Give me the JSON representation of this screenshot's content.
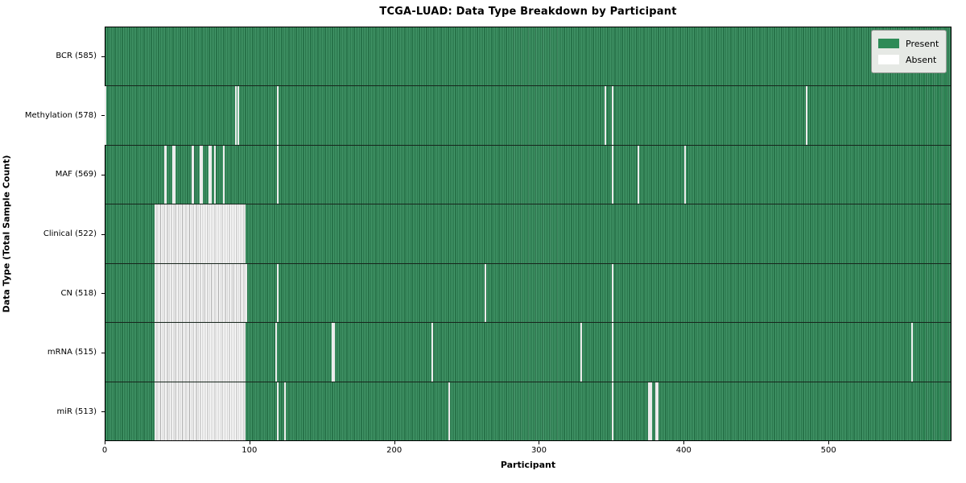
{
  "figure": {
    "background": "#ffffff",
    "plot_border_color": "#000000",
    "row_separator_color": "#17251c"
  },
  "chart_data": {
    "type": "heatmap",
    "title": "TCGA-LUAD: Data Type Breakdown by Participant",
    "xlabel": "Participant",
    "ylabel": "Data Type (Total Sample Count)",
    "n_participants": 585,
    "x_ticks": [
      0,
      100,
      200,
      300,
      400,
      500
    ],
    "x_range": [
      0,
      585
    ],
    "grid": false,
    "legend_position": "upper right",
    "legend": [
      {
        "label": "Present",
        "color": "#2e8b57"
      },
      {
        "label": "Absent",
        "color": "#ffffff"
      }
    ],
    "rows": [
      {
        "name": "BCR",
        "label": "BCR (585)",
        "present_count": 585,
        "absent": [],
        "absent_ranges": []
      },
      {
        "name": "Methylation",
        "label": "Methylation (578)",
        "present_count": 578,
        "absent": [
          0,
          90,
          92,
          119,
          346,
          351,
          485
        ],
        "absent_ranges": []
      },
      {
        "name": "MAF",
        "label": "MAF (569)",
        "present_count": 569,
        "absent": [
          41,
          42,
          47,
          48,
          60,
          61,
          66,
          67,
          72,
          73,
          76,
          82,
          119,
          351,
          369,
          401
        ],
        "absent_ranges": []
      },
      {
        "name": "Clinical",
        "label": "Clinical (522)",
        "present_count": 522,
        "absent": [],
        "absent_ranges": [
          [
            34,
            96
          ]
        ]
      },
      {
        "name": "CN",
        "label": "CN (518)",
        "present_count": 518,
        "absent": [
          119,
          263,
          351
        ],
        "absent_ranges": [
          [
            34,
            97
          ]
        ]
      },
      {
        "name": "mRNA",
        "label": "mRNA (515)",
        "present_count": 515,
        "absent": [
          118,
          157,
          158,
          226,
          329,
          351,
          558
        ],
        "absent_ranges": [
          [
            34,
            96
          ]
        ]
      },
      {
        "name": "miR",
        "label": "miR (513)",
        "present_count": 513,
        "absent": [
          119,
          124,
          238,
          351,
          376,
          377,
          378,
          381,
          382
        ],
        "absent_ranges": [
          [
            34,
            96
          ]
        ]
      }
    ]
  }
}
